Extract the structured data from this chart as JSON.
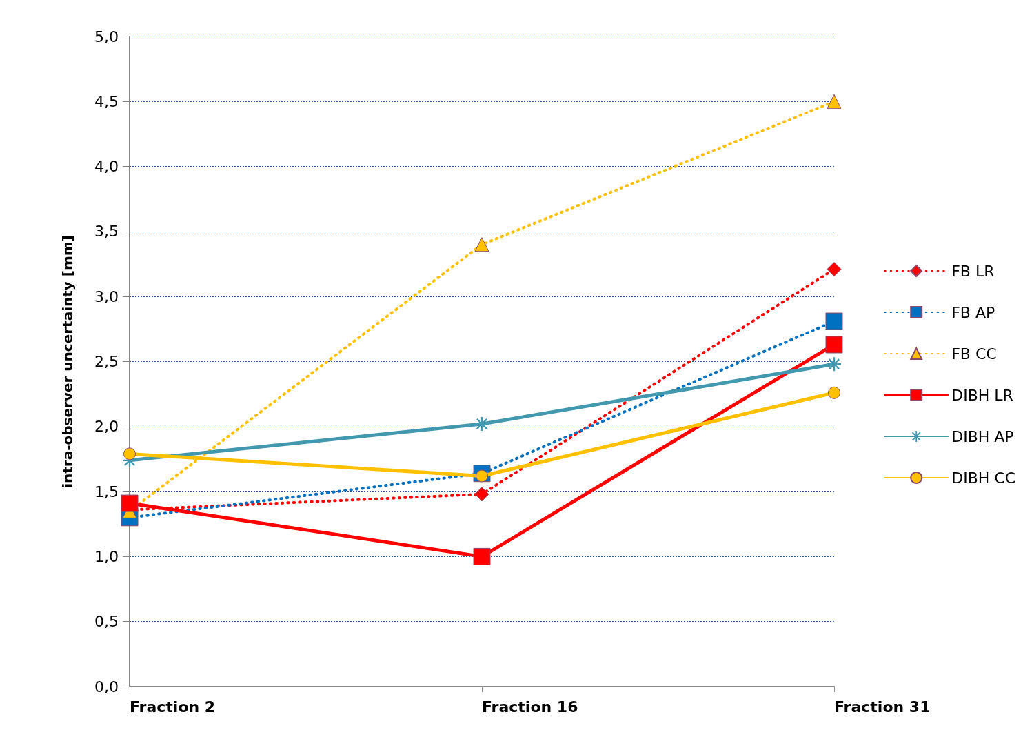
{
  "chart_data": {
    "type": "line",
    "ylabel": "intra-observer uncertainty [mm]",
    "categories": [
      "Fraction 2",
      "Fraction 16",
      "Fraction 31"
    ],
    "series": [
      {
        "name": "FB LR",
        "color": "#ff0000",
        "marker": "diamond",
        "line_style": "dotted",
        "values": [
          1.36,
          1.48,
          3.21
        ]
      },
      {
        "name": "FB AP",
        "color": "#0070c0",
        "marker": "square",
        "line_style": "dotted",
        "values": [
          1.3,
          1.64,
          2.81
        ]
      },
      {
        "name": "FB CC",
        "color": "#ffc000",
        "marker": "triangle",
        "line_style": "dotted",
        "values": [
          1.35,
          3.4,
          4.5
        ]
      },
      {
        "name": "DIBH LR",
        "color": "#ff0000",
        "marker": "square",
        "line_style": "solid",
        "values": [
          1.41,
          1.0,
          2.63
        ]
      },
      {
        "name": "DIBH AP",
        "color": "#4198af",
        "marker": "cross",
        "line_style": "solid",
        "values": [
          1.74,
          2.02,
          2.48
        ]
      },
      {
        "name": "DIBH CC",
        "color": "#ffc000",
        "marker": "circle",
        "line_style": "solid",
        "values": [
          1.79,
          1.62,
          2.26
        ]
      }
    ],
    "ylim": [
      0,
      5
    ],
    "yticks": [
      {
        "value": 0,
        "label": "0,0"
      },
      {
        "value": 0.5,
        "label": "0,5"
      },
      {
        "value": 1,
        "label": "1,0"
      },
      {
        "value": 1.5,
        "label": "1,5"
      },
      {
        "value": 2,
        "label": "2,0"
      },
      {
        "value": 2.5,
        "label": "2,5"
      },
      {
        "value": 3,
        "label": "3,0"
      },
      {
        "value": 3.5,
        "label": "3,5"
      },
      {
        "value": 4,
        "label": "4,0"
      },
      {
        "value": 4.5,
        "label": "4,5"
      },
      {
        "value": 5,
        "label": "5,0"
      }
    ],
    "grid": "y",
    "legend": "right"
  }
}
